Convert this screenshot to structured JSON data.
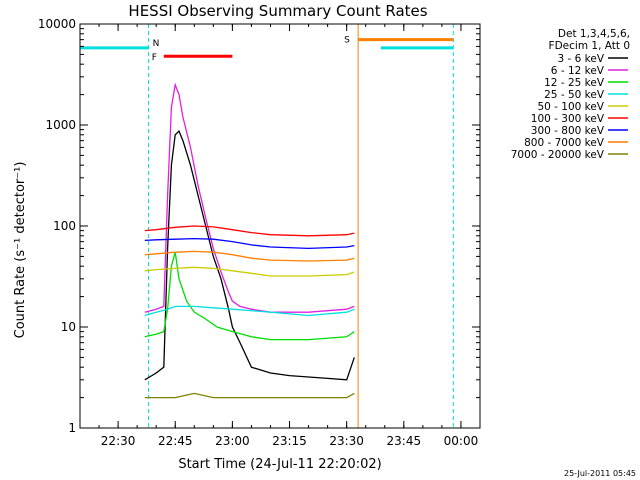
{
  "chart_data": {
    "type": "line",
    "title": "HESSI Observing Summary Count Rates",
    "xlabel": "Start Time (24-Jul-11 22:20:02)",
    "ylabel": "Count Rate (s⁻¹ detector⁻¹)",
    "y_scale": "log",
    "ylim": [
      1,
      10000
    ],
    "xlim": [
      "22:20",
      "00:05"
    ],
    "x_ticks": [
      "22:30",
      "22:45",
      "23:00",
      "23:15",
      "23:30",
      "23:45",
      "00:00"
    ],
    "y_ticks": [
      "1",
      "10",
      "100",
      "1000",
      "10000"
    ],
    "legend_header": [
      "Det 1,3,4,5,6,",
      "FDecim 1, Att 0"
    ],
    "legend_position": "right",
    "timestamp": "25-Jul-2011 05:45",
    "colors": {
      "3_6": "#000000",
      "6_12": "#e020e0",
      "12_25": "#00dd00",
      "25_50": "#00e0e0",
      "50_100": "#cccc00",
      "100_300": "#ff0000",
      "300_800": "#0000ff",
      "800_7000": "#ff7f00",
      "7000_20000": "#808000"
    },
    "series": [
      {
        "name": "3 - 6 keV",
        "color_key": "3_6",
        "x": [
          "22:37",
          "22:40",
          "22:42",
          "22:43",
          "22:44",
          "22:45",
          "22:46",
          "22:47",
          "22:49",
          "22:51",
          "22:53",
          "22:55",
          "22:57",
          "22:59",
          "23:00",
          "23:02",
          "23:05",
          "23:10",
          "23:15",
          "23:20",
          "23:25",
          "23:30",
          "23:32"
        ],
        "values": [
          3,
          3.5,
          4,
          60,
          400,
          800,
          870,
          700,
          400,
          200,
          100,
          50,
          30,
          15,
          10,
          7,
          4,
          3.5,
          3.3,
          3.2,
          3.1,
          3,
          5
        ]
      },
      {
        "name": "6 - 12 keV",
        "color_key": "6_12",
        "x": [
          "22:37",
          "22:40",
          "22:42",
          "22:43",
          "22:44",
          "22:45",
          "22:46",
          "22:47",
          "22:49",
          "22:51",
          "22:53",
          "22:55",
          "22:57",
          "22:59",
          "23:00",
          "23:02",
          "23:05",
          "23:10",
          "23:20",
          "23:30",
          "23:32"
        ],
        "values": [
          14,
          15,
          16,
          200,
          1500,
          2500,
          2000,
          1200,
          600,
          250,
          120,
          60,
          35,
          22,
          18,
          16,
          15,
          14,
          14,
          15,
          16
        ]
      },
      {
        "name": "12 - 25 keV",
        "color_key": "12_25",
        "x": [
          "22:37",
          "22:40",
          "22:42",
          "22:43",
          "22:44",
          "22:45",
          "22:46",
          "22:48",
          "22:50",
          "22:53",
          "22:56",
          "23:00",
          "23:05",
          "23:10",
          "23:20",
          "23:30",
          "23:32"
        ],
        "values": [
          8,
          8.5,
          9,
          15,
          40,
          55,
          30,
          18,
          14,
          12,
          10,
          9,
          8,
          7.5,
          7.5,
          8,
          9
        ]
      },
      {
        "name": "25 - 50 keV",
        "color_key": "25_50",
        "x": [
          "22:37",
          "22:40",
          "22:43",
          "22:45",
          "22:50",
          "22:55",
          "23:00",
          "23:10",
          "23:20",
          "23:30",
          "23:32"
        ],
        "values": [
          13,
          14,
          15,
          16,
          16,
          15.5,
          15,
          14,
          13,
          14,
          15
        ]
      },
      {
        "name": "50 - 100 keV",
        "color_key": "50_100",
        "x": [
          "22:37",
          "22:40",
          "22:45",
          "22:50",
          "22:55",
          "23:00",
          "23:05",
          "23:10",
          "23:20",
          "23:30",
          "23:32"
        ],
        "values": [
          36,
          37,
          38,
          39,
          38,
          36,
          34,
          32,
          32,
          33,
          35
        ]
      },
      {
        "name": "100 - 300 keV",
        "color_key": "100_300",
        "x": [
          "22:37",
          "22:40",
          "22:45",
          "22:50",
          "22:55",
          "23:00",
          "23:05",
          "23:10",
          "23:20",
          "23:30",
          "23:32"
        ],
        "values": [
          90,
          92,
          97,
          100,
          98,
          92,
          86,
          82,
          80,
          82,
          85
        ]
      },
      {
        "name": "300 - 800 keV",
        "color_key": "300_800",
        "x": [
          "22:37",
          "22:40",
          "22:45",
          "22:50",
          "22:55",
          "23:00",
          "23:05",
          "23:10",
          "23:20",
          "23:30",
          "23:32"
        ],
        "values": [
          72,
          73,
          74,
          75,
          74,
          70,
          65,
          62,
          60,
          62,
          64
        ]
      },
      {
        "name": "800 - 7000 keV",
        "color_key": "800_7000",
        "x": [
          "22:37",
          "22:40",
          "22:45",
          "22:50",
          "22:55",
          "23:00",
          "23:05",
          "23:10",
          "23:20",
          "23:30",
          "23:32"
        ],
        "values": [
          52,
          53,
          55,
          56,
          55,
          52,
          48,
          46,
          45,
          46,
          48
        ]
      },
      {
        "name": "7000 - 20000 keV",
        "color_key": "7000_20000",
        "x": [
          "22:37",
          "22:40",
          "22:45",
          "22:50",
          "22:55",
          "23:00",
          "23:05",
          "23:10",
          "23:20",
          "23:30",
          "23:32"
        ],
        "values": [
          2,
          2,
          2,
          2.2,
          2,
          2,
          2,
          2,
          2,
          2,
          2.2
        ]
      }
    ],
    "annotations": {
      "night_bars": [
        {
          "label": "N",
          "start": "22:20",
          "end": "22:38",
          "level": 5800,
          "color": "#00e0e0"
        },
        {
          "label": "",
          "start": "23:39",
          "end": "23:58",
          "level": 5800,
          "color": "#00e0e0"
        }
      ],
      "saa_bar": {
        "label": "S",
        "start": "23:33",
        "end": "23:58",
        "level": 7000,
        "color": "#ff7f00"
      },
      "flare_bar": {
        "label": "F",
        "start": "22:42",
        "end": "23:00",
        "level": 4800,
        "color": "#ff0000"
      },
      "night_dashes": [
        "22:38",
        "23:58"
      ],
      "saa_lines": [
        "23:33"
      ]
    }
  }
}
